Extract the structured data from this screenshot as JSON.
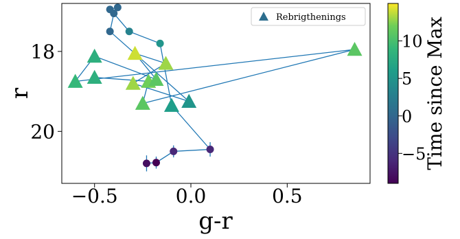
{
  "chart_data": {
    "type": "scatter",
    "title": "",
    "xlabel": "g-r",
    "ylabel": "r",
    "xlim": [
      -0.67,
      0.93
    ],
    "ylim": [
      21.3,
      16.8
    ],
    "y_inverted": true,
    "xticks": [
      -0.5,
      0.0,
      0.5
    ],
    "xtick_labels": [
      "−0.5",
      "0.0",
      "0.5"
    ],
    "yticks": [
      18,
      20
    ],
    "ytick_labels": [
      "18",
      "20"
    ],
    "grid": false,
    "line_color": "#1f77b4",
    "legend": {
      "location": "upper right",
      "entries": [
        {
          "label": "Rebrigthenings",
          "marker": "triangle",
          "color": "#2d6e8e"
        }
      ]
    },
    "colorbar": {
      "label": "Time since Max",
      "colormap": "viridis",
      "range": [
        -9,
        15
      ],
      "ticks": [
        -5,
        0,
        5,
        10
      ],
      "tick_labels": [
        "−5",
        "0",
        "5",
        "10"
      ]
    },
    "series": [
      {
        "marker": "circle",
        "points": [
          {
            "x": 0.1,
            "y": 20.45,
            "t": -6,
            "yerr": 0.18
          },
          {
            "x": -0.09,
            "y": 20.5,
            "t": -6,
            "yerr": 0.15
          },
          {
            "x": -0.18,
            "y": 20.78,
            "t": -9,
            "yerr": 0.15
          },
          {
            "x": -0.23,
            "y": 20.8,
            "t": -8,
            "yerr": 0.2
          },
          {
            "x": -0.38,
            "y": 16.9,
            "t": 0,
            "yerr": 0
          },
          {
            "x": -0.42,
            "y": 16.95,
            "t": 0,
            "yerr": 0
          },
          {
            "x": -0.4,
            "y": 17.05,
            "t": 0,
            "yerr": 0
          },
          {
            "x": -0.42,
            "y": 17.5,
            "t": 0,
            "yerr": 0
          },
          {
            "x": -0.32,
            "y": 17.5,
            "t": 3,
            "yerr": 0
          },
          {
            "x": -0.16,
            "y": 17.8,
            "t": 5,
            "yerr": 0
          }
        ]
      },
      {
        "marker": "triangle",
        "points": [
          {
            "x": -0.1,
            "y": 19.35,
            "t": 6
          },
          {
            "x": -0.01,
            "y": 19.25,
            "t": 5
          },
          {
            "x": -0.13,
            "y": 18.3,
            "t": 13
          },
          {
            "x": 0.85,
            "y": 17.95,
            "t": 11
          },
          {
            "x": -0.6,
            "y": 18.75,
            "t": 9
          },
          {
            "x": -0.5,
            "y": 18.12,
            "t": 8
          },
          {
            "x": -0.5,
            "y": 18.65,
            "t": 8
          },
          {
            "x": -0.29,
            "y": 18.05,
            "t": 14
          },
          {
            "x": -0.3,
            "y": 18.8,
            "t": 13
          },
          {
            "x": -0.22,
            "y": 18.75,
            "t": 12
          },
          {
            "x": -0.18,
            "y": 18.7,
            "t": 11
          },
          {
            "x": -0.25,
            "y": 19.3,
            "t": 11
          }
        ]
      }
    ],
    "path_order": [
      [
        "circle",
        0
      ],
      [
        "circle",
        1
      ],
      [
        "circle",
        2
      ],
      [
        "circle",
        3
      ]
    ],
    "line_path": [
      {
        "x": -0.23,
        "y": 20.8
      },
      {
        "x": -0.18,
        "y": 20.78
      },
      {
        "x": -0.09,
        "y": 20.5
      },
      {
        "x": 0.1,
        "y": 20.45
      },
      {
        "x": -0.1,
        "y": 19.35
      },
      {
        "x": -0.16,
        "y": 17.8
      },
      {
        "x": -0.32,
        "y": 17.5
      },
      {
        "x": -0.4,
        "y": 17.05
      },
      {
        "x": -0.38,
        "y": 16.9
      },
      {
        "x": -0.42,
        "y": 16.95
      },
      {
        "x": -0.4,
        "y": 17.05
      },
      {
        "x": -0.42,
        "y": 17.5
      },
      {
        "x": -0.01,
        "y": 19.25
      },
      {
        "x": -0.3,
        "y": 18.8
      },
      {
        "x": -0.13,
        "y": 18.3
      },
      {
        "x": -0.29,
        "y": 18.05
      },
      {
        "x": -0.18,
        "y": 18.7
      },
      {
        "x": -0.5,
        "y": 18.12
      },
      {
        "x": -0.6,
        "y": 18.75
      },
      {
        "x": 0.85,
        "y": 17.95
      },
      {
        "x": -0.25,
        "y": 19.3
      },
      {
        "x": -0.22,
        "y": 18.75
      },
      {
        "x": -0.5,
        "y": 18.65
      },
      {
        "x": -0.22,
        "y": 18.75
      }
    ]
  }
}
